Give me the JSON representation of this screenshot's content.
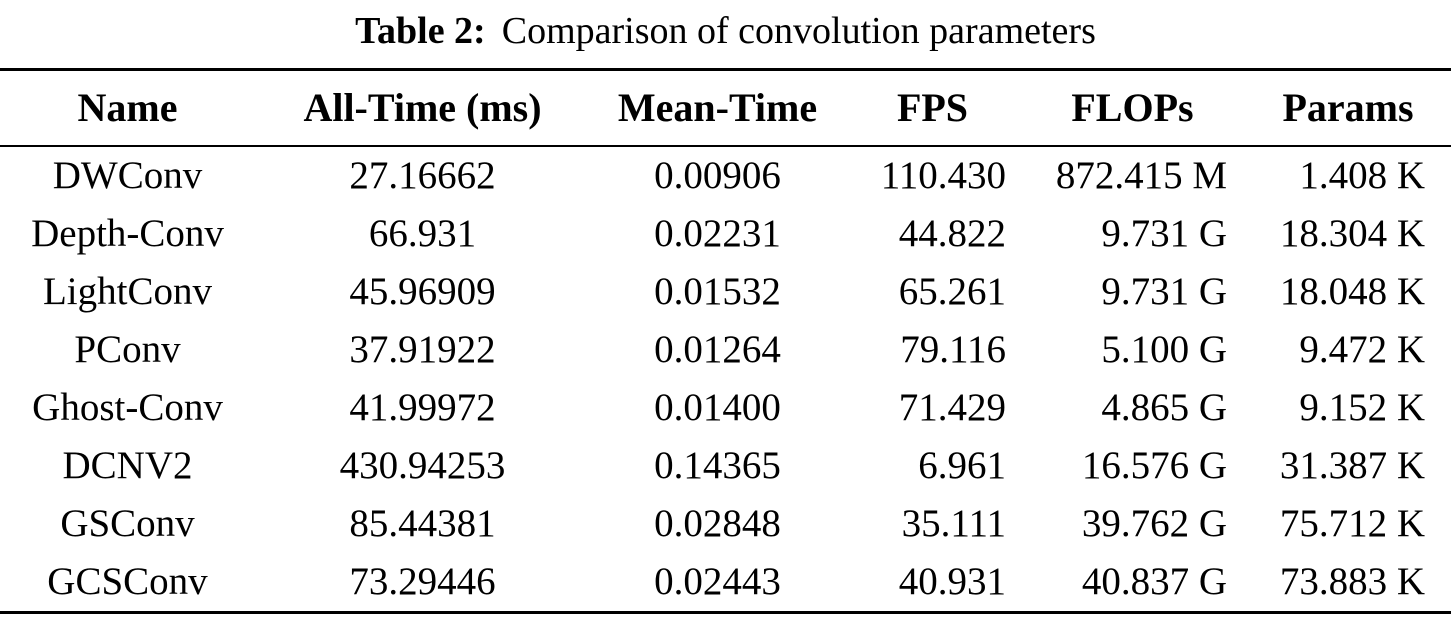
{
  "caption": {
    "label": "Table 2:",
    "text": "Comparison of convolution parameters"
  },
  "table": {
    "columns": [
      "Name",
      "All-Time (ms)",
      "Mean-Time",
      "FPS",
      "FLOPs",
      "Params"
    ],
    "rows": [
      [
        "DWConv",
        "27.16662",
        "0.00906",
        "110.430",
        "872.415 M",
        "1.408 K"
      ],
      [
        "Depth-Conv",
        "66.931",
        "0.02231",
        "44.822",
        "9.731 G",
        "18.304 K"
      ],
      [
        "LightConv",
        "45.96909",
        "0.01532",
        "65.261",
        "9.731 G",
        "18.048 K"
      ],
      [
        "PConv",
        "37.91922",
        "0.01264",
        "79.116",
        "5.100 G",
        "9.472 K"
      ],
      [
        "Ghost-Conv",
        "41.99972",
        "0.01400",
        "71.429",
        "4.865 G",
        "9.152 K"
      ],
      [
        "DCNV2",
        "430.94253",
        "0.14365",
        "6.961",
        "16.576 G",
        "31.387 K"
      ],
      [
        "GSConv",
        "85.44381",
        "0.02848",
        "35.111",
        "39.762 G",
        "75.712 K"
      ],
      [
        "GCSConv",
        "73.29446",
        "0.02443",
        "40.931",
        "40.837 G",
        "73.883 K"
      ]
    ]
  },
  "chart_data": {
    "type": "table",
    "title": "Table 2: Comparison of convolution parameters",
    "columns": [
      "Name",
      "All-Time (ms)",
      "Mean-Time",
      "FPS",
      "FLOPs",
      "Params"
    ],
    "rows": [
      [
        "DWConv",
        "27.16662",
        "0.00906",
        "110.430",
        "872.415 M",
        "1.408 K"
      ],
      [
        "Depth-Conv",
        "66.931",
        "0.02231",
        "44.822",
        "9.731 G",
        "18.304 K"
      ],
      [
        "LightConv",
        "45.96909",
        "0.01532",
        "65.261",
        "9.731 G",
        "18.048 K"
      ],
      [
        "PConv",
        "37.91922",
        "0.01264",
        "79.116",
        "5.100 G",
        "9.472 K"
      ],
      [
        "Ghost-Conv",
        "41.99972",
        "0.01400",
        "71.429",
        "4.865 G",
        "9.152 K"
      ],
      [
        "DCNV2",
        "430.94253",
        "0.14365",
        "6.961",
        "16.576 G",
        "31.387 K"
      ],
      [
        "GSConv",
        "85.44381",
        "0.02848",
        "35.111",
        "39.762 G",
        "75.712 K"
      ],
      [
        "GCSConv",
        "73.29446",
        "0.02443",
        "40.931",
        "40.837 G",
        "73.883 K"
      ]
    ]
  },
  "colors": {
    "text": "#000000",
    "background": "#ffffff",
    "rule": "#000000"
  }
}
